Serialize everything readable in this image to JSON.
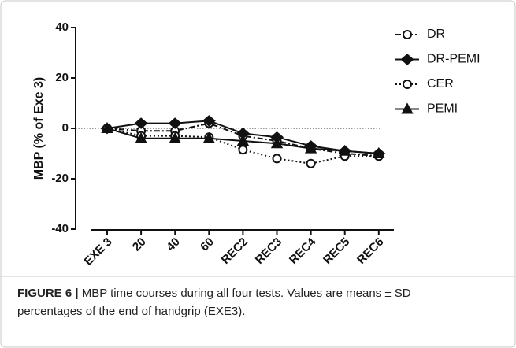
{
  "chart_data": {
    "type": "line",
    "y_label": "MBP (% of Exe 3)",
    "categories": [
      "EXE 3",
      "20",
      "40",
      "60",
      "REC2",
      "REC3",
      "REC4",
      "REC5",
      "REC6"
    ],
    "ylim": [
      -40,
      40
    ],
    "yticks": [
      -40,
      -20,
      0,
      20,
      40
    ],
    "reference_line": 0,
    "series": [
      {
        "name": "DR",
        "color": "#111111",
        "marker": "circle-open",
        "line_style": "dashdot",
        "values": [
          0,
          -1,
          -1,
          2,
          -3,
          -5,
          -8,
          -10,
          -11
        ]
      },
      {
        "name": "DR-PEMI",
        "color": "#111111",
        "marker": "diamond",
        "line_style": "solid",
        "values": [
          0,
          2,
          2,
          3,
          -2,
          -3.5,
          -7,
          -9,
          -10
        ]
      },
      {
        "name": "CER",
        "color": "#111111",
        "marker": "circle-open",
        "line_style": "dotted",
        "values": [
          0,
          -3,
          -3,
          -3.5,
          -8.5,
          -12,
          -14,
          -11,
          -11
        ]
      },
      {
        "name": "PEMI",
        "color": "#111111",
        "marker": "triangle",
        "line_style": "solid",
        "values": [
          0,
          -4,
          -4,
          -4,
          -5,
          -6,
          -8,
          -9,
          -10
        ]
      }
    ]
  },
  "caption": {
    "label": "FIGURE 6 |",
    "lines": [
      "MBP time courses during all four tests. Values are means ± SD",
      "percentages of the end of handgrip (EXE3)."
    ]
  }
}
